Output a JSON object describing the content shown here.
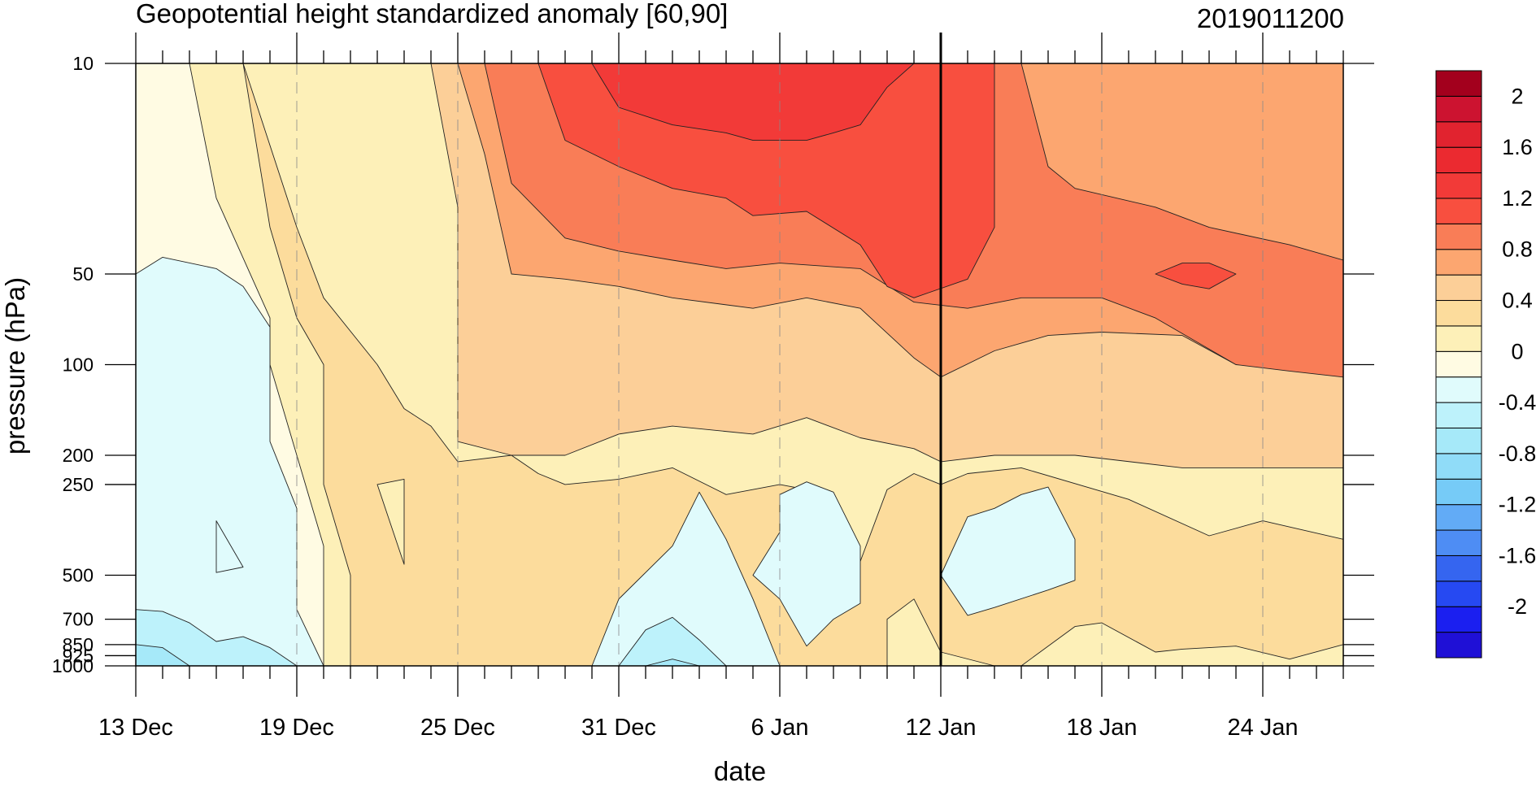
{
  "chart_data": {
    "type": "heatmap",
    "title": "Geopotential height standardized anomaly [60,90]",
    "date_label": "2019011200",
    "xlabel": "date",
    "ylabel": "pressure (hPa)",
    "x_start": "2018-12-13",
    "x_end": "2019-01-27",
    "x_ticks": [
      {
        "date": "2018-12-13",
        "label": "13 Dec"
      },
      {
        "date": "2018-12-19",
        "label": "19 Dec"
      },
      {
        "date": "2018-12-25",
        "label": "25 Dec"
      },
      {
        "date": "2018-12-31",
        "label": "31 Dec"
      },
      {
        "date": "2019-01-06",
        "label": "6 Jan"
      },
      {
        "date": "2019-01-12",
        "label": "12 Jan"
      },
      {
        "date": "2019-01-18",
        "label": "18 Jan"
      },
      {
        "date": "2019-01-24",
        "label": "24 Jan"
      }
    ],
    "y_scale": "log",
    "ylim": [
      1000,
      10
    ],
    "y_ticks": [
      {
        "value": 10,
        "label": "10"
      },
      {
        "value": 50,
        "label": "50"
      },
      {
        "value": 100,
        "label": "100"
      },
      {
        "value": 200,
        "label": "200"
      },
      {
        "value": 250,
        "label": "250"
      },
      {
        "value": 500,
        "label": "500"
      },
      {
        "value": 700,
        "label": "700"
      },
      {
        "value": 850,
        "label": "850"
      },
      {
        "value": 925,
        "label": "925"
      },
      {
        "value": 1000,
        "label": "1000"
      }
    ],
    "reference_line_date": "2019-01-12",
    "colorbar": {
      "levels": [
        -2.2,
        -2.0,
        -1.8,
        -1.6,
        -1.4,
        -1.2,
        -1.0,
        -0.8,
        -0.6,
        -0.4,
        -0.2,
        0.0,
        0.2,
        0.4,
        0.6,
        0.8,
        1.0,
        1.2,
        1.4,
        1.6,
        1.8,
        2.0,
        2.2
      ],
      "colors": [
        "#1f10d6",
        "#1b1ff0",
        "#2649f2",
        "#3565f0",
        "#4e8df4",
        "#62abf6",
        "#76cbf7",
        "#90dcf8",
        "#a6e9f9",
        "#bdf2fb",
        "#e0fbfc",
        "#fffbe3",
        "#fdf0b8",
        "#fcdc9c",
        "#fccf98",
        "#fca670",
        "#f97d57",
        "#f84f3f",
        "#f23a38",
        "#eb2a30",
        "#e1232f",
        "#cc1330",
        "#a3001d"
      ],
      "labels": [
        {
          "value": 2.0,
          "text": "2"
        },
        {
          "value": 1.6,
          "text": "1.6"
        },
        {
          "value": 1.2,
          "text": "1.2"
        },
        {
          "value": 0.8,
          "text": "0.8"
        },
        {
          "value": 0.4,
          "text": "0.4"
        },
        {
          "value": 0.0,
          "text": "0"
        },
        {
          "value": -0.4,
          "text": "-0.4"
        },
        {
          "value": -0.8,
          "text": "-0.8"
        },
        {
          "value": -1.2,
          "text": "-1.2"
        },
        {
          "value": -1.6,
          "text": "-1.6"
        },
        {
          "value": -2.0,
          "text": "-2"
        }
      ]
    },
    "fill_bands": [
      {
        "level": 0.2,
        "points": [
          [
            "2018-12-15",
            10
          ],
          [
            "2018-12-16",
            28
          ],
          [
            "2018-12-18",
            70
          ],
          [
            "2018-12-18",
            100
          ],
          [
            "2018-12-19",
            200
          ],
          [
            "2018-12-20",
            400
          ],
          [
            "2018-12-20",
            1000
          ],
          [
            "2019-01-27",
            1000
          ],
          [
            "2019-01-27",
            10
          ]
        ]
      },
      {
        "level": 0.4,
        "points": [
          [
            "2018-12-17",
            10
          ],
          [
            "2018-12-18",
            35
          ],
          [
            "2018-12-19",
            70
          ],
          [
            "2018-12-20",
            100
          ],
          [
            "2018-12-20",
            250
          ],
          [
            "2018-12-21",
            500
          ],
          [
            "2018-12-21",
            1000
          ],
          [
            "2019-01-10",
            1000
          ],
          [
            "2019-01-10",
            700
          ],
          [
            "2019-01-11",
            600
          ],
          [
            "2019-01-12",
            900
          ],
          [
            "2019-01-14",
            1000
          ],
          [
            "2019-01-15",
            1000
          ],
          [
            "2019-01-17",
            740
          ],
          [
            "2019-01-18",
            720
          ],
          [
            "2019-01-20",
            900
          ],
          [
            "2019-01-21",
            880
          ],
          [
            "2019-01-23",
            860
          ],
          [
            "2019-01-25",
            950
          ],
          [
            "2019-01-27",
            850
          ],
          [
            "2019-01-27",
            380
          ],
          [
            "2019-01-24",
            330
          ],
          [
            "2019-01-22",
            370
          ],
          [
            "2019-01-19",
            280
          ],
          [
            "2019-01-15",
            220
          ],
          [
            "2019-01-13",
            230
          ],
          [
            "2019-01-12",
            250
          ],
          [
            "2019-01-11",
            230
          ],
          [
            "2019-01-10",
            260
          ],
          [
            "2019-01-09",
            450
          ],
          [
            "2019-01-08",
            450
          ],
          [
            "2019-01-07",
            260
          ],
          [
            "2019-01-06",
            250
          ],
          [
            "2019-01-04",
            270
          ],
          [
            "2019-01-02",
            220
          ],
          [
            "2018-12-31",
            240
          ],
          [
            "2018-12-29",
            250
          ],
          [
            "2018-12-28",
            230
          ],
          [
            "2018-12-27",
            200
          ],
          [
            "2018-12-25",
            210
          ],
          [
            "2018-12-24",
            160
          ],
          [
            "2018-12-23",
            140
          ],
          [
            "2018-12-22",
            100
          ],
          [
            "2018-12-20",
            60
          ],
          [
            "2018-12-19",
            35
          ],
          [
            "2018-12-17",
            10
          ]
        ]
      },
      {
        "level": 0.6,
        "points": [
          [
            "2018-12-24",
            10
          ],
          [
            "2018-12-25",
            30
          ],
          [
            "2018-12-25",
            180
          ],
          [
            "2018-12-27",
            200
          ],
          [
            "2018-12-29",
            200
          ],
          [
            "2018-12-31",
            170
          ],
          [
            "2019-01-02",
            160
          ],
          [
            "2019-01-05",
            170
          ],
          [
            "2019-01-07",
            150
          ],
          [
            "2019-01-09",
            175
          ],
          [
            "2019-01-11",
            190
          ],
          [
            "2019-01-12",
            210
          ],
          [
            "2019-01-14",
            200
          ],
          [
            "2019-01-17",
            200
          ],
          [
            "2019-01-21",
            220
          ],
          [
            "2019-01-24",
            220
          ],
          [
            "2019-01-27",
            220
          ],
          [
            "2019-01-27",
            10
          ]
        ]
      },
      {
        "level": 0.8,
        "points": [
          [
            "2018-12-25",
            10
          ],
          [
            "2018-12-26",
            20
          ],
          [
            "2018-12-27",
            50
          ],
          [
            "2018-12-29",
            52
          ],
          [
            "2018-12-31",
            55
          ],
          [
            "2019-01-02",
            60
          ],
          [
            "2019-01-05",
            65
          ],
          [
            "2019-01-07",
            60
          ],
          [
            "2019-01-09",
            65
          ],
          [
            "2019-01-11",
            95
          ],
          [
            "2019-01-12",
            110
          ],
          [
            "2019-01-14",
            90
          ],
          [
            "2019-01-16",
            80
          ],
          [
            "2019-01-18",
            78
          ],
          [
            "2019-01-21",
            80
          ],
          [
            "2019-01-23",
            100
          ],
          [
            "2019-01-27",
            100
          ],
          [
            "2019-01-27",
            10
          ]
        ]
      },
      {
        "level": 1.0,
        "points": [
          [
            "2018-12-26",
            10
          ],
          [
            "2018-12-27",
            25
          ],
          [
            "2018-12-29",
            38
          ],
          [
            "2018-12-31",
            42
          ],
          [
            "2019-01-02",
            45
          ],
          [
            "2019-01-04",
            48
          ],
          [
            "2019-01-06",
            46
          ],
          [
            "2019-01-09",
            48
          ],
          [
            "2019-01-11",
            62
          ],
          [
            "2019-01-13",
            65
          ],
          [
            "2019-01-15",
            60
          ],
          [
            "2019-01-18",
            60
          ],
          [
            "2019-01-20",
            70
          ],
          [
            "2019-01-23",
            100
          ],
          [
            "2019-01-25",
            105
          ],
          [
            "2019-01-27",
            110
          ],
          [
            "2019-01-27",
            45
          ],
          [
            "2019-01-25",
            40
          ],
          [
            "2019-01-22",
            35
          ],
          [
            "2019-01-20",
            30
          ],
          [
            "2019-01-17",
            26
          ],
          [
            "2019-01-16",
            22
          ],
          [
            "2019-01-15",
            10
          ]
        ]
      },
      {
        "level": 1.2,
        "points": [
          [
            "2018-12-28",
            10
          ],
          [
            "2018-12-29",
            18
          ],
          [
            "2018-12-31",
            22
          ],
          [
            "2019-01-02",
            26
          ],
          [
            "2019-01-04",
            28
          ],
          [
            "2019-01-05",
            32
          ],
          [
            "2019-01-07",
            31
          ],
          [
            "2019-01-09",
            40
          ],
          [
            "2019-01-10",
            55
          ],
          [
            "2019-01-11",
            60
          ],
          [
            "2019-01-13",
            52
          ],
          [
            "2019-01-14",
            35
          ],
          [
            "2019-01-14",
            10
          ]
        ]
      },
      {
        "level": 1.2,
        "points": [
          [
            "2019-01-20",
            50
          ],
          [
            "2019-01-21",
            46
          ],
          [
            "2019-01-22",
            46
          ],
          [
            "2019-01-23",
            50
          ],
          [
            "2019-01-22",
            56
          ],
          [
            "2019-01-21",
            54
          ]
        ]
      },
      {
        "level": 1.4,
        "points": [
          [
            "2018-12-30",
            10
          ],
          [
            "2018-12-31",
            14
          ],
          [
            "2019-01-02",
            16
          ],
          [
            "2019-01-04",
            17
          ],
          [
            "2019-01-05",
            18
          ],
          [
            "2019-01-07",
            18
          ],
          [
            "2019-01-08",
            17
          ],
          [
            "2019-01-09",
            16
          ],
          [
            "2019-01-10",
            12
          ],
          [
            "2019-01-11",
            10
          ]
        ]
      },
      {
        "level": -0.2,
        "points": [
          [
            "2018-12-13",
            50
          ],
          [
            "2018-12-14",
            44
          ],
          [
            "2018-12-16",
            48
          ],
          [
            "2018-12-17",
            55
          ],
          [
            "2018-12-18",
            75
          ],
          [
            "2018-12-18",
            180
          ],
          [
            "2018-12-19",
            300
          ],
          [
            "2018-12-19",
            650
          ],
          [
            "2018-12-20",
            1000
          ],
          [
            "2018-12-13",
            1000
          ]
        ]
      },
      {
        "level": -0.4,
        "points": [
          [
            "2018-12-13",
            650
          ],
          [
            "2018-12-14",
            660
          ],
          [
            "2018-12-15",
            720
          ],
          [
            "2018-12-16",
            830
          ],
          [
            "2018-12-17",
            800
          ],
          [
            "2018-12-18",
            870
          ],
          [
            "2018-12-19",
            1000
          ],
          [
            "2018-12-13",
            1000
          ]
        ]
      },
      {
        "level": -0.6,
        "points": [
          [
            "2018-12-13",
            850
          ],
          [
            "2018-12-14",
            870
          ],
          [
            "2018-12-15",
            1000
          ],
          [
            "2018-12-13",
            1000
          ]
        ]
      },
      {
        "level": -0.2,
        "points": [
          [
            "2018-12-16",
            330
          ],
          [
            "2018-12-17",
            470
          ],
          [
            "2018-12-16",
            490
          ]
        ]
      },
      {
        "level": -0.2,
        "points": [
          [
            "2018-12-30",
            1000
          ],
          [
            "2018-12-31",
            600
          ],
          [
            "2019-01-02",
            400
          ],
          [
            "2019-01-03",
            265
          ],
          [
            "2019-01-04",
            380
          ],
          [
            "2019-01-05",
            600
          ],
          [
            "2019-01-06",
            1000
          ]
        ]
      },
      {
        "level": -0.4,
        "points": [
          [
            "2018-12-31",
            1000
          ],
          [
            "2019-01-01",
            760
          ],
          [
            "2019-01-02",
            690
          ],
          [
            "2019-01-03",
            820
          ],
          [
            "2019-01-04",
            1000
          ]
        ]
      },
      {
        "level": -0.6,
        "points": [
          [
            "2019-01-01",
            1000
          ],
          [
            "2019-01-02",
            950
          ],
          [
            "2019-01-03",
            1000
          ]
        ]
      },
      {
        "level": -0.2,
        "points": [
          [
            "2019-01-05",
            500
          ],
          [
            "2019-01-06",
            360
          ],
          [
            "2019-01-06",
            270
          ],
          [
            "2019-01-07",
            245
          ],
          [
            "2019-01-08",
            265
          ],
          [
            "2019-01-09",
            400
          ],
          [
            "2019-01-09",
            620
          ],
          [
            "2019-01-08",
            700
          ],
          [
            "2019-01-07",
            860
          ],
          [
            "2019-01-06",
            600
          ]
        ]
      },
      {
        "level": -0.2,
        "points": [
          [
            "2019-01-12",
            500
          ],
          [
            "2019-01-13",
            320
          ],
          [
            "2019-01-14",
            300
          ],
          [
            "2019-01-15",
            270
          ],
          [
            "2019-01-16",
            255
          ],
          [
            "2019-01-17",
            380
          ],
          [
            "2019-01-17",
            520
          ],
          [
            "2019-01-16",
            560
          ],
          [
            "2019-01-14",
            640
          ],
          [
            "2019-01-13",
            680
          ]
        ]
      },
      {
        "level": 0.2,
        "points": [
          [
            "2018-12-23",
            240
          ],
          [
            "2018-12-23",
            460
          ],
          [
            "2018-12-22",
            250
          ]
        ]
      }
    ]
  }
}
